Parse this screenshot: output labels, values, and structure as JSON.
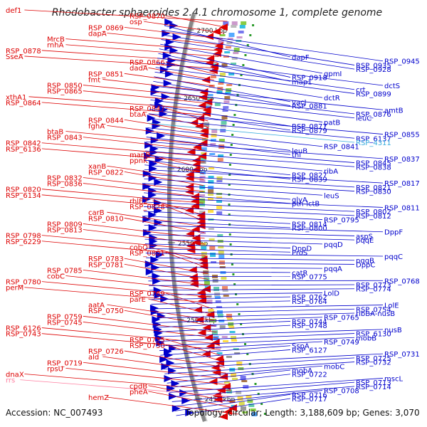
{
  "title": "Rhodobacter sphaeroides 2.4.1 chromosome 1, complete genome",
  "accession_label": "Accession: NC_007493",
  "topology_label": "Topology: circular; Length: 3,188,609 bp; Genes: 3,070",
  "ticks": [
    "2700 kbp",
    "2650 kbp",
    "2600 kbp",
    "2550 kbp",
    "2500 kbp",
    "2450 kbp"
  ],
  "colors": {
    "reverse_strand": "#dd0000",
    "forward_strand": "#0000cc",
    "rna": "#ff7fa0",
    "trna_cyan": "#33aadd",
    "backbone": "#888888"
  },
  "left_labels": [
    {
      "text": "def1",
      "rna": false
    },
    {
      "text": "RSP_0870",
      "rna": false
    },
    {
      "text": "osp",
      "rna": false
    },
    {
      "text": "RSP_0869",
      "rna": false
    },
    {
      "text": "dapA",
      "rna": false
    },
    {
      "text": "MrcB",
      "rna": false
    },
    {
      "text": "rnhA",
      "rna": false
    },
    {
      "text": "RSP_0878",
      "rna": false
    },
    {
      "text": "SseA",
      "rna": false
    },
    {
      "text": "RSP_0866",
      "rna": false
    },
    {
      "text": "dadA",
      "rna": false
    },
    {
      "text": "RSP_0851",
      "rna": false
    },
    {
      "text": "fmt",
      "rna": false
    },
    {
      "text": "RSP_0850",
      "rna": false
    },
    {
      "text": "RSP_0865",
      "rna": false
    },
    {
      "text": "xthA1",
      "rna": false
    },
    {
      "text": "RSP_0864",
      "rna": false
    },
    {
      "text": "RSP_0847",
      "rna": false
    },
    {
      "text": "btaA",
      "rna": false
    },
    {
      "text": "RSP_0844",
      "rna": false
    },
    {
      "text": "fghA",
      "rna": false
    },
    {
      "text": "btaB",
      "rna": false
    },
    {
      "text": "RSP_0843",
      "rna": false
    },
    {
      "text": "RSP_0842",
      "rna": false
    },
    {
      "text": "RSP_6136",
      "rna": false
    },
    {
      "text": "manB",
      "rna": false
    },
    {
      "text": "ppnK",
      "rna": false
    },
    {
      "text": "xanB",
      "rna": false
    },
    {
      "text": "RSP_0822",
      "rna": false
    },
    {
      "text": "RSP_0832",
      "rna": false
    },
    {
      "text": "RSP_0836",
      "rna": false
    },
    {
      "text": "RSP_0820",
      "rna": false
    },
    {
      "text": "RSP_6134",
      "rna": false
    },
    {
      "text": "rhlE2",
      "rna": false
    },
    {
      "text": "RSP_0828",
      "rna": false
    },
    {
      "text": "carB",
      "rna": false
    },
    {
      "text": "RSP_0810",
      "rna": false
    },
    {
      "text": "RSP_0809",
      "rna": false
    },
    {
      "text": "RSP_0813",
      "rna": false
    },
    {
      "text": "RSP_0798",
      "rna": false
    },
    {
      "text": "RSP_6229",
      "rna": false
    },
    {
      "text": "cobQ",
      "rna": false
    },
    {
      "text": "RSP_0801",
      "rna": false
    },
    {
      "text": "RSP_0783",
      "rna": false
    },
    {
      "text": "RSP_0781",
      "rna": false
    },
    {
      "text": "RSP_0785",
      "rna": false
    },
    {
      "text": "cobC",
      "rna": false
    },
    {
      "text": "RSP_0780",
      "rna": false
    },
    {
      "text": "perM",
      "rna": false
    },
    {
      "text": "RSP_0769",
      "rna": false
    },
    {
      "text": "parE",
      "rna": false
    },
    {
      "text": "aatA",
      "rna": false
    },
    {
      "text": "RSP_0750",
      "rna": false
    },
    {
      "text": "RSP_0759",
      "rna": false
    },
    {
      "text": "RSP_0745",
      "rna": false
    },
    {
      "text": "RSP_6126",
      "rna": false
    },
    {
      "text": "RSP_0743",
      "rna": false
    },
    {
      "text": "RSP_0735",
      "rna": false
    },
    {
      "text": "RSP_0730",
      "rna": false
    },
    {
      "text": "RSP_0726",
      "rna": false
    },
    {
      "text": "ald",
      "rna": false
    },
    {
      "text": "RSP_0719",
      "rna": false
    },
    {
      "text": "rpsU",
      "rna": false
    },
    {
      "text": "dnaX",
      "rna": false
    },
    {
      "text": "rrs",
      "rna": true
    },
    {
      "text": "cpdB",
      "rna": false
    },
    {
      "text": "pheA",
      "rna": false
    },
    {
      "text": "hemZ",
      "rna": false
    }
  ],
  "right_labels": [
    {
      "text": "dapF",
      "rna": false
    },
    {
      "text": "RSP_0945",
      "rna": false
    },
    {
      "text": "RSP_0935",
      "rna": false
    },
    {
      "text": "RSP_0928",
      "rna": false
    },
    {
      "text": "gpmI",
      "rna": false
    },
    {
      "text": "RSP_0918",
      "rna": false
    },
    {
      "text": "map1",
      "rna": false
    },
    {
      "text": "dctS",
      "rna": false
    },
    {
      "text": "crt",
      "rna": false
    },
    {
      "text": "RSP_0899",
      "rna": false
    },
    {
      "text": "dctR",
      "rna": false
    },
    {
      "text": "vacJ",
      "rna": false
    },
    {
      "text": "RSP_0881",
      "rna": false
    },
    {
      "text": "amtB",
      "rna": false
    },
    {
      "text": "RSP_0876",
      "rna": false
    },
    {
      "text": "leuC",
      "rna": false
    },
    {
      "text": "patB",
      "rna": false
    },
    {
      "text": "RSP_0877",
      "rna": false
    },
    {
      "text": "RSP_0879",
      "rna": false
    },
    {
      "text": "RSP_0855",
      "rna": false
    },
    {
      "text": "RSP_6137",
      "rna": false
    },
    {
      "text": "RSP_4311",
      "rna": true
    },
    {
      "text": "RSP_0841",
      "rna": false
    },
    {
      "text": "leuB",
      "rna": false
    },
    {
      "text": "thi",
      "rna": false
    },
    {
      "text": "RSP_0837",
      "rna": false
    },
    {
      "text": "RSP_0845",
      "rna": false
    },
    {
      "text": "RSP_0838",
      "rna": false
    },
    {
      "text": "ribA",
      "rna": false
    },
    {
      "text": "RSP_0827",
      "rna": false
    },
    {
      "text": "RSP_0839",
      "rna": false
    },
    {
      "text": "RSP_0817",
      "rna": false
    },
    {
      "text": "RSP_0821",
      "rna": false
    },
    {
      "text": "RSP_0830",
      "rna": false
    },
    {
      "text": "leuS",
      "rna": false
    },
    {
      "text": "glyA",
      "rna": false
    },
    {
      "text": "pth-lctB",
      "rna": false
    },
    {
      "text": "RSP_0811",
      "rna": false
    },
    {
      "text": "RSP_0802",
      "rna": false
    },
    {
      "text": "RSP_0812",
      "rna": false
    },
    {
      "text": "RSP_0795",
      "rna": false
    },
    {
      "text": "RSP_0814",
      "rna": false
    },
    {
      "text": "RSP_0800",
      "rna": false
    },
    {
      "text": "DppF",
      "rna": false
    },
    {
      "text": "aspS",
      "rna": false
    },
    {
      "text": "pqqE",
      "rna": false
    },
    {
      "text": "pqqD",
      "rna": false
    },
    {
      "text": "DppD",
      "rna": false
    },
    {
      "text": "ProS",
      "rna": false
    },
    {
      "text": "pqqC",
      "rna": false
    },
    {
      "text": "pqqB",
      "rna": false
    },
    {
      "text": "DppC",
      "rna": false
    },
    {
      "text": "pqqA",
      "rna": false
    },
    {
      "text": "catR",
      "rna": false
    },
    {
      "text": "RSP_0775",
      "rna": false
    },
    {
      "text": "RSP_0768",
      "rna": false
    },
    {
      "text": "RSP_0773",
      "rna": false
    },
    {
      "text": "RSP_0774",
      "rna": false
    },
    {
      "text": "LolD",
      "rna": false
    },
    {
      "text": "RSP_0762",
      "rna": false
    },
    {
      "text": "RSP_0764",
      "rna": false
    },
    {
      "text": "LolE",
      "rna": false
    },
    {
      "text": "RSP_0754",
      "rna": false
    },
    {
      "text": "ribBA-nusB",
      "rna": false
    },
    {
      "text": "RSP_0765",
      "rna": false
    },
    {
      "text": "RSP_0744",
      "rna": false
    },
    {
      "text": "RSP_0748",
      "rna": false
    },
    {
      "text": "nusB",
      "rna": false
    },
    {
      "text": "RSP_6130",
      "rna": false
    },
    {
      "text": "mobB",
      "rna": false
    },
    {
      "text": "RSP_0749",
      "rna": false
    },
    {
      "text": "SspA",
      "rna": false
    },
    {
      "text": "RSP_6127",
      "rna": false
    },
    {
      "text": "RSP_0731",
      "rna": false
    },
    {
      "text": "RSP_0725",
      "rna": false
    },
    {
      "text": "RSP_0732",
      "rna": false
    },
    {
      "text": "mobC",
      "rna": false
    },
    {
      "text": "mobA",
      "rna": false
    },
    {
      "text": "RSP_0722",
      "rna": false
    },
    {
      "text": "mscL",
      "rna": false
    },
    {
      "text": "RSP_0713",
      "rna": false
    },
    {
      "text": "RSP_0714",
      "rna": false
    },
    {
      "text": "RSP_0708",
      "rna": false
    },
    {
      "text": "RSP_0716",
      "rna": false
    },
    {
      "text": "RSP_0717",
      "rna": false
    }
  ]
}
